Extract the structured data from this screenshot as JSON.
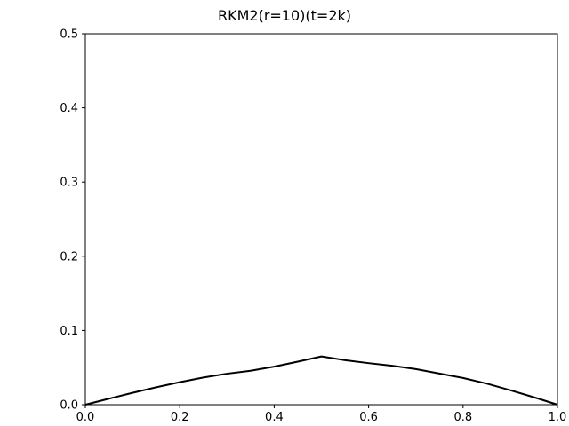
{
  "chart_data": {
    "type": "line",
    "title": "RKM2(r=10)(t=2k)",
    "xlabel": "",
    "ylabel": "",
    "xlim": [
      0.0,
      1.0
    ],
    "ylim": [
      0.0,
      0.5
    ],
    "x_ticks": [
      0.0,
      0.2,
      0.4,
      0.6,
      0.8,
      1.0
    ],
    "x_tick_labels": [
      "0.0",
      "0.2",
      "0.4",
      "0.6",
      "0.8",
      "1.0"
    ],
    "y_ticks": [
      0.0,
      0.1,
      0.2,
      0.3,
      0.4,
      0.5
    ],
    "y_tick_labels": [
      "0.0",
      "0.1",
      "0.2",
      "0.3",
      "0.4",
      "0.5"
    ],
    "grid": false,
    "legend": "none",
    "series": [
      {
        "color": "#000000",
        "x": [
          0.0,
          0.05,
          0.1,
          0.15,
          0.2,
          0.25,
          0.3,
          0.35,
          0.4,
          0.45,
          0.5,
          0.55,
          0.6,
          0.65,
          0.7,
          0.75,
          0.8,
          0.85,
          0.9,
          0.95,
          1.0
        ],
        "y": [
          0.0,
          0.0081,
          0.016,
          0.0235,
          0.0304,
          0.0366,
          0.0418,
          0.0458,
          0.0513,
          0.058,
          0.065,
          0.06,
          0.056,
          0.0525,
          0.048,
          0.042,
          0.036,
          0.0285,
          0.0195,
          0.01,
          0.0
        ]
      }
    ]
  }
}
